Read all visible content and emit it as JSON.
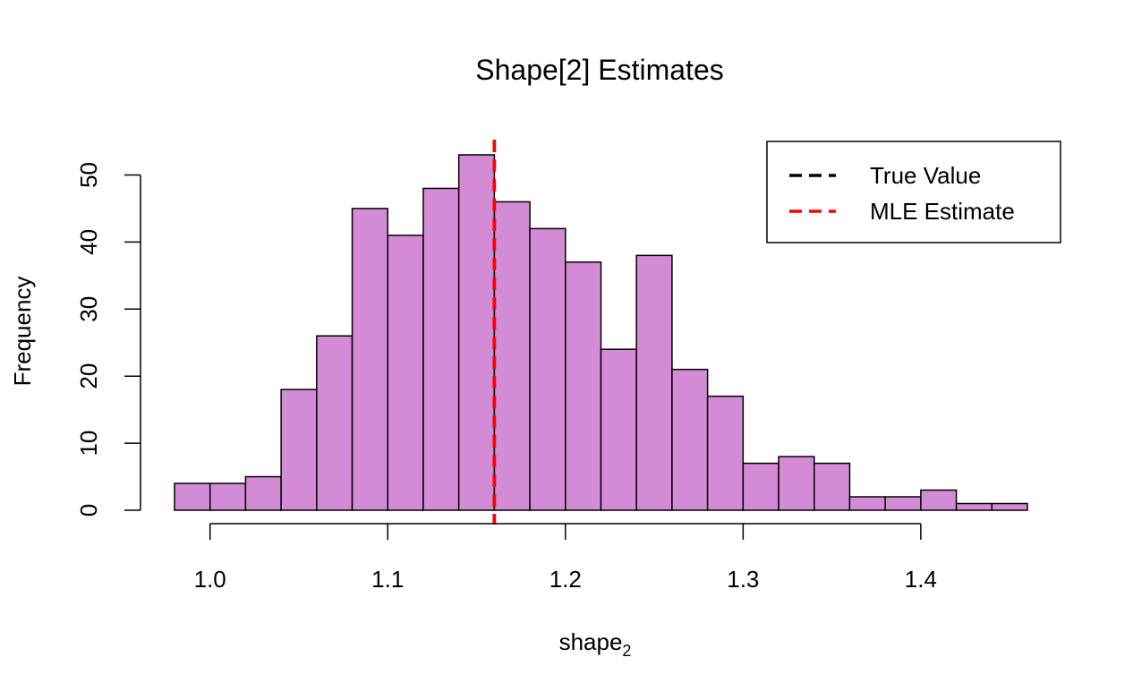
{
  "chart_data": {
    "type": "bar",
    "title": "Shape[2] Estimates",
    "xlabel_main": "shape",
    "xlabel_sub": "2",
    "ylabel": "Frequency",
    "bin_start": 0.98,
    "bin_width": 0.02,
    "values": [
      4,
      4,
      5,
      18,
      26,
      45,
      41,
      48,
      53,
      46,
      42,
      37,
      24,
      38,
      21,
      17,
      7,
      8,
      7,
      2,
      2,
      3,
      1,
      1
    ],
    "xlim": [
      0.98,
      1.46
    ],
    "ylim": [
      0,
      53
    ],
    "x_ticks": [
      1.0,
      1.1,
      1.2,
      1.3,
      1.4
    ],
    "x_tick_labels": [
      "1.0",
      "1.1",
      "1.2",
      "1.3",
      "1.4"
    ],
    "y_ticks": [
      0,
      10,
      20,
      30,
      40,
      50
    ],
    "y_tick_labels": [
      "0",
      "10",
      "20",
      "30",
      "40",
      "50"
    ],
    "bar_color": "#D38BD6",
    "bar_edge_color": "#000000",
    "reference_lines": [
      {
        "name": "True Value",
        "x": 1.16,
        "color": "#000000",
        "style": "dashed"
      },
      {
        "name": "MLE Estimate",
        "x": 1.16,
        "color": "#FF0000",
        "style": "dashed"
      }
    ],
    "legend": {
      "placement": "top-right",
      "entries": [
        {
          "label": "True Value",
          "color": "#000000"
        },
        {
          "label": "MLE Estimate",
          "color": "#FF0000"
        }
      ]
    },
    "grid": false
  }
}
